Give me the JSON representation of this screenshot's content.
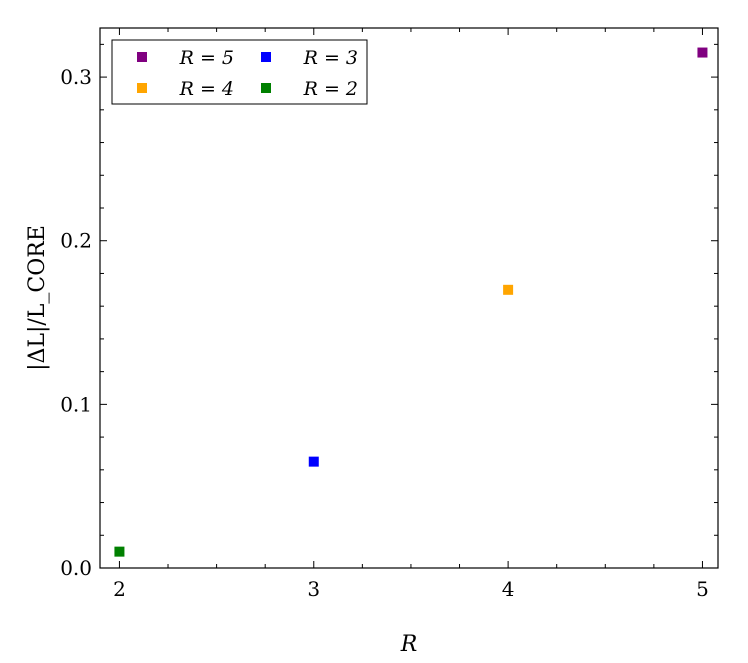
{
  "chart_data": {
    "type": "scatter",
    "title": "",
    "xlabel": "R",
    "ylabel": "|ΔL|/L_CORE",
    "xlim": [
      1.9,
      5.08
    ],
    "ylim": [
      0.0,
      0.33
    ],
    "grid": false,
    "legend_position": "top-left",
    "x_ticks": [
      {
        "value": 2,
        "label": "2"
      },
      {
        "value": 3,
        "label": "3"
      },
      {
        "value": 4,
        "label": "4"
      },
      {
        "value": 5,
        "label": "5"
      }
    ],
    "x_minor_ticks": [
      2.25,
      2.5,
      2.75,
      3.25,
      3.5,
      3.75,
      4.25,
      4.5,
      4.75
    ],
    "y_ticks": [
      {
        "value": 0.0,
        "label": "0.0"
      },
      {
        "value": 0.1,
        "label": "0.1"
      },
      {
        "value": 0.2,
        "label": "0.2"
      },
      {
        "value": 0.3,
        "label": "0.3"
      }
    ],
    "y_minor_ticks": [
      0.02,
      0.04,
      0.06,
      0.08,
      0.12,
      0.14,
      0.16,
      0.18,
      0.22,
      0.24,
      0.26,
      0.28,
      0.32
    ],
    "series": [
      {
        "name": "R = 5",
        "color": "#800080",
        "marker": "square",
        "points": [
          {
            "x": 5,
            "y": 0.315
          }
        ]
      },
      {
        "name": "R = 4",
        "color": "#FFA500",
        "marker": "square",
        "points": [
          {
            "x": 4,
            "y": 0.17
          }
        ]
      },
      {
        "name": "R = 3",
        "color": "#0000FF",
        "marker": "square",
        "points": [
          {
            "x": 3,
            "y": 0.065
          }
        ]
      },
      {
        "name": "R = 2",
        "color": "#008000",
        "marker": "square",
        "points": [
          {
            "x": 2,
            "y": 0.01
          }
        ]
      }
    ],
    "legend_order": [
      "R = 5",
      "R = 3",
      "R = 4",
      "R = 2"
    ]
  }
}
